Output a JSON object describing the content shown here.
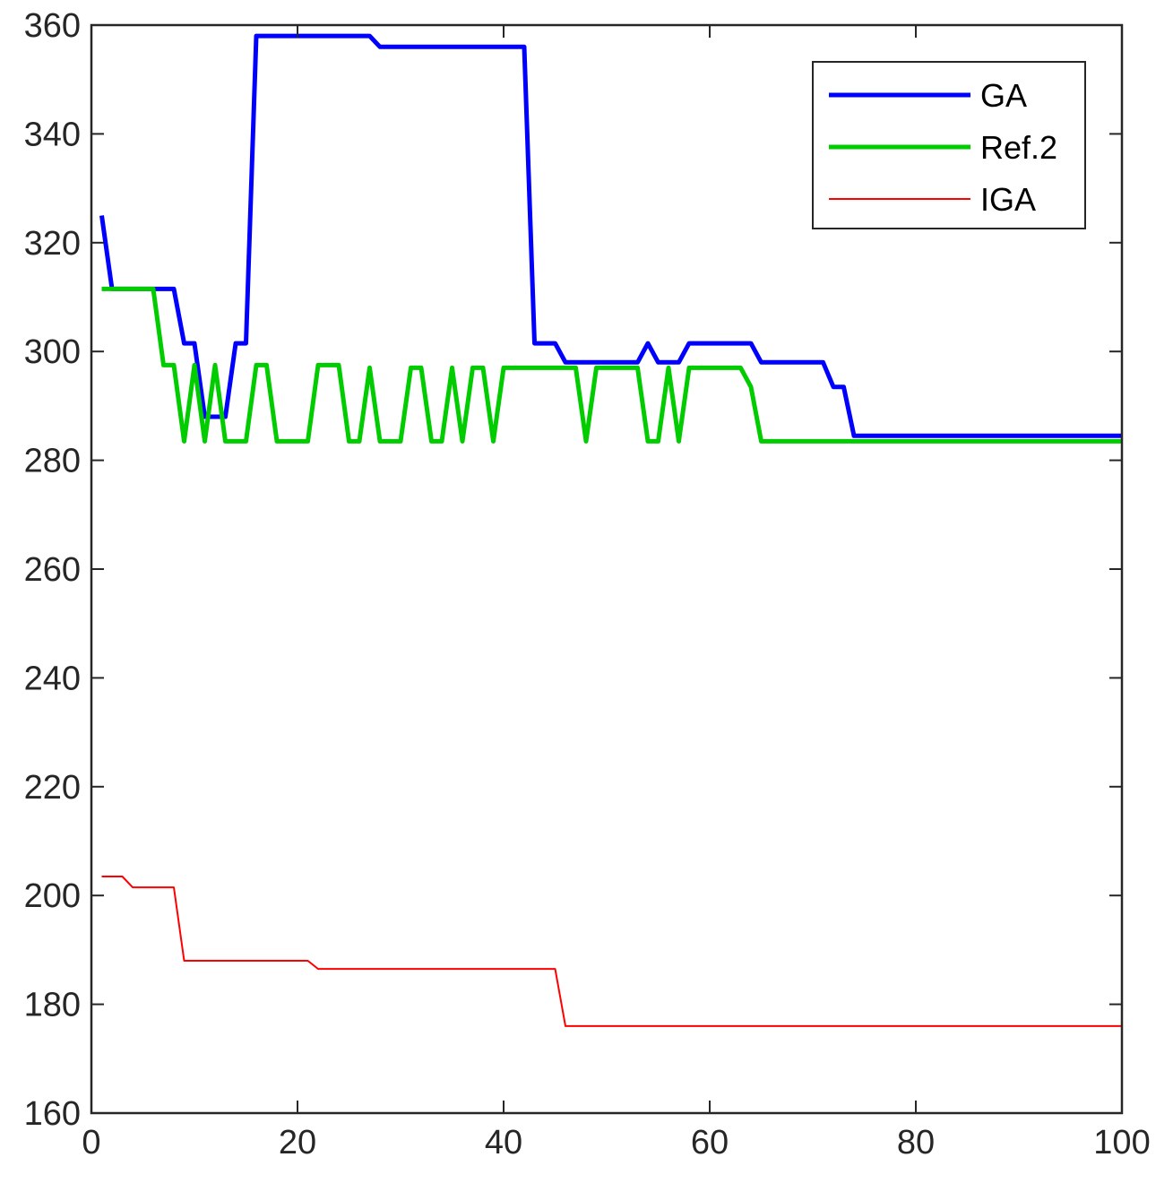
{
  "chart_data": {
    "type": "line",
    "title": "",
    "xlabel": "",
    "ylabel": "",
    "xlim": [
      0,
      100
    ],
    "ylim": [
      160,
      360
    ],
    "xticks": [
      0,
      20,
      40,
      60,
      80,
      100
    ],
    "yticks": [
      160,
      180,
      200,
      220,
      240,
      260,
      280,
      300,
      320,
      340,
      360
    ],
    "xtick_labels": [
      "0",
      "20",
      "40",
      "60",
      "80",
      "100"
    ],
    "ytick_labels": [
      "160",
      "180",
      "200",
      "220",
      "240",
      "260",
      "280",
      "300",
      "320",
      "340",
      "360"
    ],
    "grid": false,
    "legend_position": "top-right",
    "series": [
      {
        "name": "GA",
        "color": "#0000ff",
        "line_width": "thick",
        "points": [
          [
            1,
            325
          ],
          [
            2,
            311.5
          ],
          [
            8,
            311.5
          ],
          [
            9,
            301.5
          ],
          [
            10,
            301.5
          ],
          [
            11,
            288
          ],
          [
            13,
            288
          ],
          [
            14,
            301.5
          ],
          [
            15,
            301.5
          ],
          [
            16,
            358
          ],
          [
            27,
            358
          ],
          [
            28,
            356
          ],
          [
            42,
            356
          ],
          [
            43,
            301.5
          ],
          [
            45,
            301.5
          ],
          [
            46,
            298
          ],
          [
            53,
            298
          ],
          [
            54,
            301.5
          ],
          [
            55,
            298
          ],
          [
            57,
            298
          ],
          [
            58,
            301.5
          ],
          [
            64,
            301.5
          ],
          [
            65,
            298
          ],
          [
            71,
            298
          ],
          [
            72,
            293.5
          ],
          [
            73,
            293.5
          ],
          [
            74,
            284.5
          ],
          [
            100,
            284.5
          ]
        ]
      },
      {
        "name": "Ref.2",
        "color": "#00cc00",
        "line_width": "thick",
        "points": [
          [
            1,
            311.5
          ],
          [
            6,
            311.5
          ],
          [
            7,
            297.5
          ],
          [
            8,
            297.5
          ],
          [
            9,
            283.5
          ],
          [
            10,
            297.5
          ],
          [
            11,
            283.5
          ],
          [
            12,
            297.5
          ],
          [
            13,
            283.5
          ],
          [
            15,
            283.5
          ],
          [
            16,
            297.5
          ],
          [
            17,
            297.5
          ],
          [
            18,
            283.5
          ],
          [
            21,
            283.5
          ],
          [
            22,
            297.5
          ],
          [
            24,
            297.5
          ],
          [
            25,
            283.5
          ],
          [
            26,
            283.5
          ],
          [
            27,
            297
          ],
          [
            28,
            283.5
          ],
          [
            30,
            283.5
          ],
          [
            31,
            297
          ],
          [
            32,
            297
          ],
          [
            33,
            283.5
          ],
          [
            34,
            283.5
          ],
          [
            35,
            297
          ],
          [
            36,
            283.5
          ],
          [
            37,
            297
          ],
          [
            38,
            297
          ],
          [
            39,
            283.5
          ],
          [
            40,
            297
          ],
          [
            47,
            297
          ],
          [
            48,
            283.5
          ],
          [
            49,
            297
          ],
          [
            53,
            297
          ],
          [
            54,
            283.5
          ],
          [
            55,
            283.5
          ],
          [
            56,
            297
          ],
          [
            57,
            283.5
          ],
          [
            58,
            297
          ],
          [
            63,
            297
          ],
          [
            64,
            293.5
          ],
          [
            65,
            283.5
          ],
          [
            100,
            283.5
          ]
        ]
      },
      {
        "name": "IGA",
        "color": "#ff0000",
        "line_width": "thin",
        "points": [
          [
            1,
            203.5
          ],
          [
            3,
            203.5
          ],
          [
            4,
            201.5
          ],
          [
            8,
            201.5
          ],
          [
            9,
            188
          ],
          [
            21,
            188
          ],
          [
            22,
            186.5
          ],
          [
            45,
            186.5
          ],
          [
            46,
            176
          ],
          [
            100,
            176
          ]
        ]
      }
    ]
  }
}
